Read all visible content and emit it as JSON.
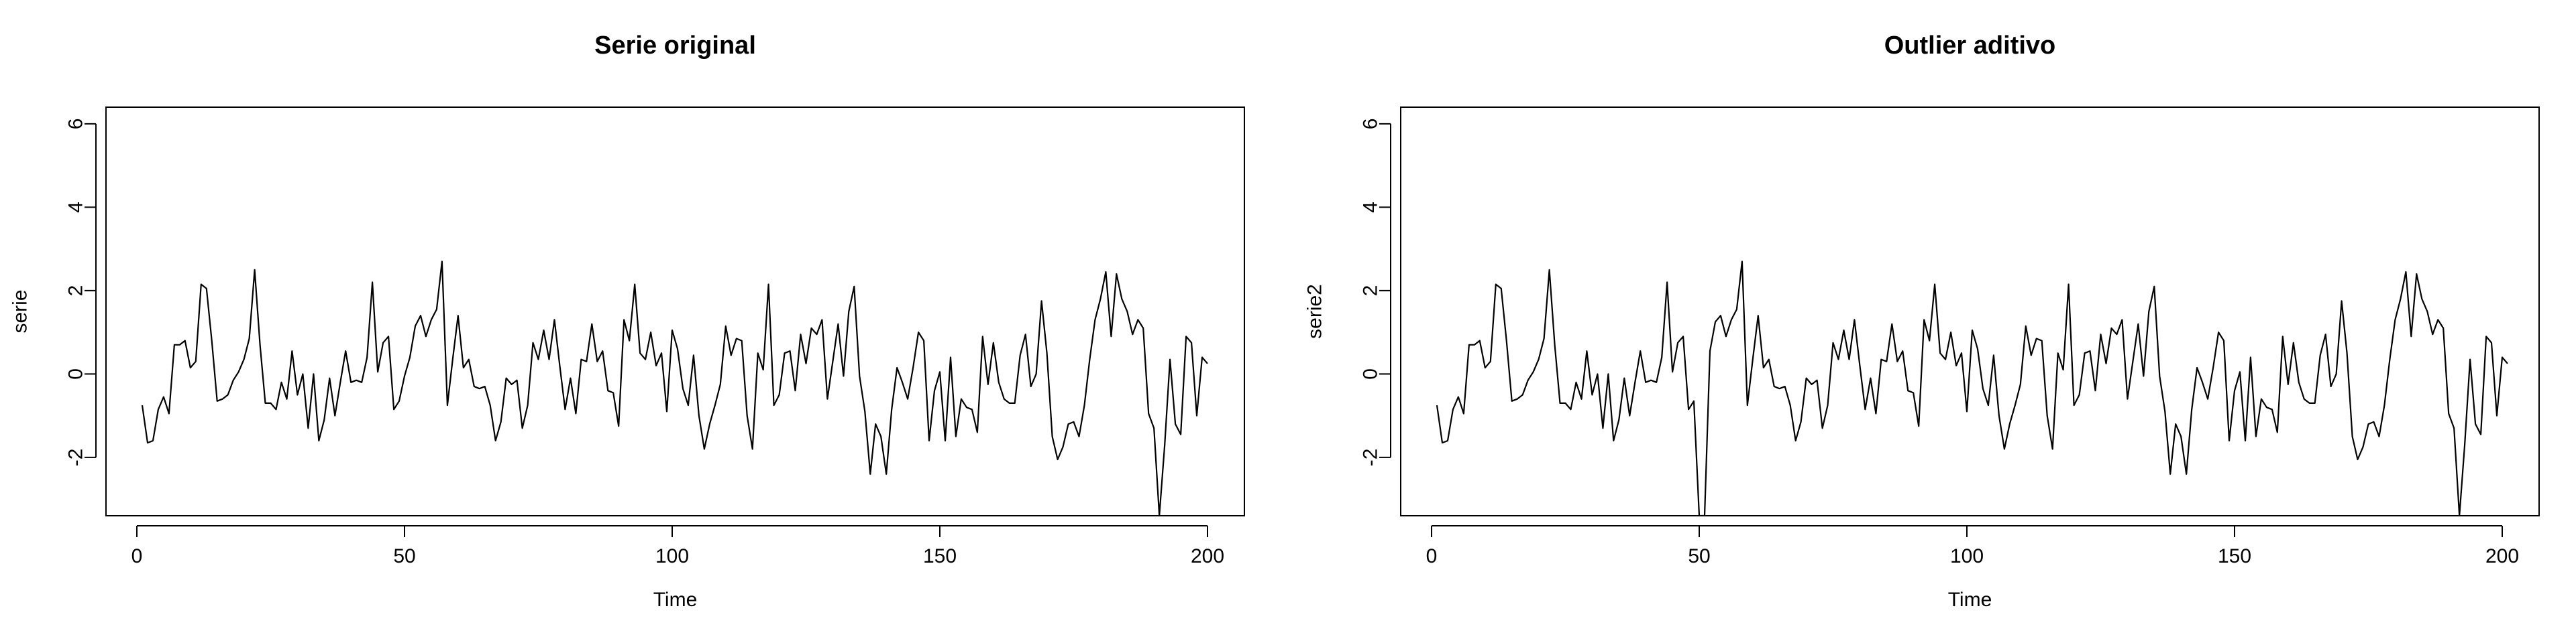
{
  "chart_data": [
    {
      "type": "line",
      "title": "Serie original",
      "xlabel": "Time",
      "ylabel": "serie",
      "xlim": [
        1,
        200
      ],
      "ylim": [
        -3.4,
        6.4
      ],
      "x_ticks": [
        0,
        50,
        100,
        150,
        200
      ],
      "y_ticks": [
        -2,
        0,
        2,
        4,
        6
      ],
      "x_tick_labels": [
        "0",
        "50",
        "100",
        "150",
        "200"
      ],
      "y_tick_labels": [
        "-2",
        "0",
        "2",
        "4",
        "6"
      ],
      "grid": false,
      "series": [
        {
          "x_start": 1,
          "x_step": 1,
          "values": [
            -0.75,
            -1.65,
            -1.6,
            -0.85,
            -0.55,
            -0.95,
            0.7,
            0.7,
            0.8,
            0.15,
            0.3,
            2.15,
            2.05,
            0.8,
            -0.65,
            -0.6,
            -0.5,
            -0.15,
            0.05,
            0.35,
            0.85,
            2.5,
            0.7,
            -0.7,
            -0.7,
            -0.85,
            -0.2,
            -0.6,
            0.55,
            -0.5,
            0.0,
            -1.3,
            0.0,
            -1.6,
            -1.1,
            -0.1,
            -1.0,
            -0.2,
            0.55,
            -0.2,
            -0.15,
            -0.2,
            0.4,
            2.2,
            0.05,
            0.75,
            0.9,
            -0.85,
            -0.65,
            -0.05,
            0.4,
            1.15,
            1.4,
            0.9,
            1.3,
            1.55,
            2.7,
            -0.75,
            0.35,
            1.4,
            0.15,
            0.35,
            -0.3,
            -0.35,
            -0.3,
            -0.75,
            -1.6,
            -1.15,
            -0.1,
            -0.25,
            -0.15,
            -1.3,
            -0.75,
            0.75,
            0.35,
            1.05,
            0.35,
            1.3,
            0.2,
            -0.85,
            -0.1,
            -0.95,
            0.35,
            0.3,
            1.2,
            0.3,
            0.55,
            -0.4,
            -0.45,
            -1.25,
            1.3,
            0.8,
            2.15,
            0.5,
            0.35,
            1.0,
            0.2,
            0.5,
            -0.9,
            1.05,
            0.6,
            -0.35,
            -0.75,
            0.45,
            -1.0,
            -1.8,
            -1.2,
            -0.75,
            -0.25,
            1.15,
            0.45,
            0.85,
            0.8,
            -1.0,
            -1.8,
            0.5,
            0.1,
            2.15,
            -0.75,
            -0.5,
            0.5,
            0.55,
            -0.4,
            0.95,
            0.25,
            1.1,
            0.95,
            1.3,
            -0.6,
            0.3,
            1.2,
            -0.05,
            1.5,
            2.1,
            -0.05,
            -0.9,
            -2.4,
            -1.2,
            -1.5,
            -2.4,
            -0.85,
            0.15,
            -0.2,
            -0.6,
            0.15,
            1.0,
            0.8,
            -1.6,
            -0.4,
            0.05,
            -1.6,
            0.4,
            -1.5,
            -0.6,
            -0.8,
            -0.85,
            -1.4,
            0.9,
            -0.25,
            0.75,
            -0.2,
            -0.6,
            -0.7,
            -0.7,
            0.45,
            0.95,
            -0.3,
            0.0,
            1.75,
            0.5,
            -1.5,
            -2.05,
            -1.75,
            -1.2,
            -1.15,
            -1.5,
            -0.75,
            0.35,
            1.3,
            1.8,
            2.45,
            0.9,
            2.4,
            1.8,
            1.5,
            0.95,
            1.3,
            1.1,
            -0.95,
            -1.3,
            -3.4,
            -1.7,
            0.35,
            -1.2,
            -1.45,
            0.9,
            0.75,
            -1.0,
            0.4,
            0.25
          ]
        }
      ]
    },
    {
      "type": "line",
      "title": "Outlier aditivo",
      "xlabel": "Time",
      "ylabel": "serie2",
      "xlim": [
        1,
        200
      ],
      "ylim": [
        -3.4,
        6.4
      ],
      "x_ticks": [
        0,
        50,
        100,
        150,
        200
      ],
      "y_ticks": [
        -2,
        0,
        2,
        4,
        6
      ],
      "x_tick_labels": [
        "0",
        "50",
        "100",
        "150",
        "200"
      ],
      "y_tick_labels": [
        "-2",
        "0",
        "2",
        "4",
        "6"
      ],
      "grid": false,
      "series": [
        {
          "x_start": 1,
          "x_step": 1,
          "values": [
            -0.75,
            -1.65,
            -1.6,
            -0.85,
            -0.55,
            -0.95,
            0.7,
            0.7,
            0.8,
            0.15,
            0.3,
            2.15,
            2.05,
            0.8,
            -0.65,
            -0.6,
            -0.5,
            -0.15,
            0.05,
            0.35,
            0.85,
            2.5,
            0.7,
            -0.7,
            -0.7,
            -0.85,
            -0.2,
            -0.6,
            0.55,
            -0.5,
            0.0,
            -1.3,
            0.0,
            -1.6,
            -1.1,
            -0.1,
            -1.0,
            -0.2,
            0.55,
            -0.2,
            -0.15,
            -0.2,
            0.4,
            2.2,
            0.05,
            0.75,
            0.9,
            -0.85,
            -0.65,
            -3.4,
            -3.4,
            0.55,
            1.25,
            1.4,
            0.9,
            1.3,
            1.55,
            2.7,
            -0.75,
            0.35,
            1.4,
            0.15,
            0.35,
            -0.3,
            -0.35,
            -0.3,
            -0.75,
            -1.6,
            -1.15,
            -0.1,
            -0.25,
            -0.15,
            -1.3,
            -0.75,
            0.75,
            0.35,
            1.05,
            0.35,
            1.3,
            0.2,
            -0.85,
            -0.1,
            -0.95,
            0.35,
            0.3,
            1.2,
            0.3,
            0.55,
            -0.4,
            -0.45,
            -1.25,
            1.3,
            0.8,
            2.15,
            0.5,
            0.35,
            1.0,
            0.2,
            0.5,
            -0.9,
            1.05,
            0.6,
            -0.35,
            -0.75,
            0.45,
            -1.0,
            -1.8,
            -1.2,
            -0.75,
            -0.25,
            1.15,
            0.45,
            0.85,
            0.8,
            -1.0,
            -1.8,
            0.5,
            0.1,
            2.15,
            -0.75,
            -0.5,
            0.5,
            0.55,
            -0.4,
            0.95,
            0.25,
            1.1,
            0.95,
            1.3,
            -0.6,
            0.3,
            1.2,
            -0.05,
            1.5,
            2.1,
            -0.05,
            -0.9,
            -2.4,
            -1.2,
            -1.5,
            -2.4,
            -0.85,
            0.15,
            -0.2,
            -0.6,
            0.15,
            1.0,
            0.8,
            -1.6,
            -0.4,
            0.05,
            -1.6,
            0.4,
            -1.5,
            -0.6,
            -0.8,
            -0.85,
            -1.4,
            0.9,
            -0.25,
            0.75,
            -0.2,
            -0.6,
            -0.7,
            -0.7,
            0.45,
            0.95,
            -0.3,
            0.0,
            1.75,
            0.5,
            -1.5,
            -2.05,
            -1.75,
            -1.2,
            -1.15,
            -1.5,
            -0.75,
            0.35,
            1.3,
            1.8,
            2.45,
            0.9,
            2.4,
            1.8,
            1.5,
            0.95,
            1.3,
            1.1,
            -0.95,
            -1.3,
            -3.4,
            -1.7,
            0.35,
            -1.2,
            -1.45,
            0.9,
            0.75,
            -1.0,
            0.4,
            0.25
          ]
        }
      ]
    }
  ]
}
